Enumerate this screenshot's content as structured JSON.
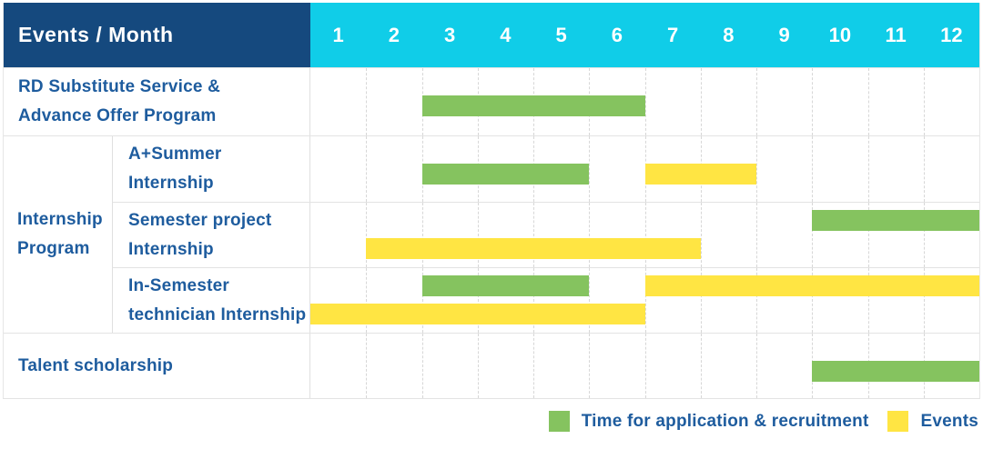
{
  "header": {
    "title": "Events / Month"
  },
  "months": [
    "1",
    "2",
    "3",
    "4",
    "5",
    "6",
    "7",
    "8",
    "9",
    "10",
    "11",
    "12"
  ],
  "colors": {
    "navy": "#15497E",
    "cyan": "#10CDE8",
    "green": "#85C35F",
    "yellow": "#FFE543",
    "blue": "#1E5C9E"
  },
  "legend": [
    {
      "color_key": "green",
      "label": "Time for application & recruitment"
    },
    {
      "color_key": "yellow",
      "label": "Events"
    }
  ],
  "chart_data": {
    "type": "bar",
    "variant": "gantt",
    "x_ticks": [
      1,
      2,
      3,
      4,
      5,
      6,
      7,
      8,
      9,
      10,
      11,
      12
    ],
    "axis_header": "Events / Month",
    "grid": "dashed-vertical",
    "legend_position": "bottom-right",
    "series_legend": [
      "Time for application & recruitment",
      "Events"
    ],
    "groups": [
      {
        "label": "RD Substitute Service & Advance Offer Program",
        "label_lines": [
          "RD Substitute Service &",
          "Advance Offer Program"
        ],
        "rows": [
          {
            "label": "RD Substitute Service & Advance Offer Program",
            "segments": [
              {
                "series": "Time for application & recruitment",
                "color_key": "green",
                "start_month": 3,
                "end_month": 6,
                "lane": "single"
              }
            ]
          }
        ]
      },
      {
        "label": "Internship Program",
        "label_lines": [
          "Internship",
          "Program"
        ],
        "rows": [
          {
            "label": "A+Summer Internship",
            "label_lines": [
              "A+Summer",
              "Internship"
            ],
            "segments": [
              {
                "series": "Time for application & recruitment",
                "color_key": "green",
                "start_month": 3,
                "end_month": 5,
                "lane": "single"
              },
              {
                "series": "Events",
                "color_key": "yellow",
                "start_month": 7,
                "end_month": 8,
                "lane": "single"
              }
            ]
          },
          {
            "label": "Semester project Internship",
            "label_lines": [
              "Semester project",
              "Internship"
            ],
            "segments": [
              {
                "series": "Time for application & recruitment",
                "color_key": "green",
                "start_month": 10,
                "end_month": 12,
                "lane": "top"
              },
              {
                "series": "Events",
                "color_key": "yellow",
                "start_month": 2,
                "end_month": 7,
                "lane": "bottom"
              }
            ]
          },
          {
            "label": "In-Semester technician Internship",
            "label_lines": [
              "In-Semester",
              "technician Internship"
            ],
            "segments": [
              {
                "series": "Time for application & recruitment",
                "color_key": "green",
                "start_month": 3,
                "end_month": 5,
                "lane": "top"
              },
              {
                "series": "Events",
                "color_key": "yellow",
                "start_month": 7,
                "end_month": 12,
                "lane": "top"
              },
              {
                "series": "Events",
                "color_key": "yellow",
                "start_month": 1,
                "end_month": 6,
                "lane": "bottom"
              }
            ]
          }
        ]
      },
      {
        "label": "Talent scholarship",
        "label_lines": [
          "Talent scholarship"
        ],
        "rows": [
          {
            "label": "Talent scholarship",
            "segments": [
              {
                "series": "Time for application & recruitment",
                "color_key": "green",
                "start_month": 10,
                "end_month": 12,
                "lane": "single"
              }
            ]
          }
        ]
      }
    ]
  }
}
